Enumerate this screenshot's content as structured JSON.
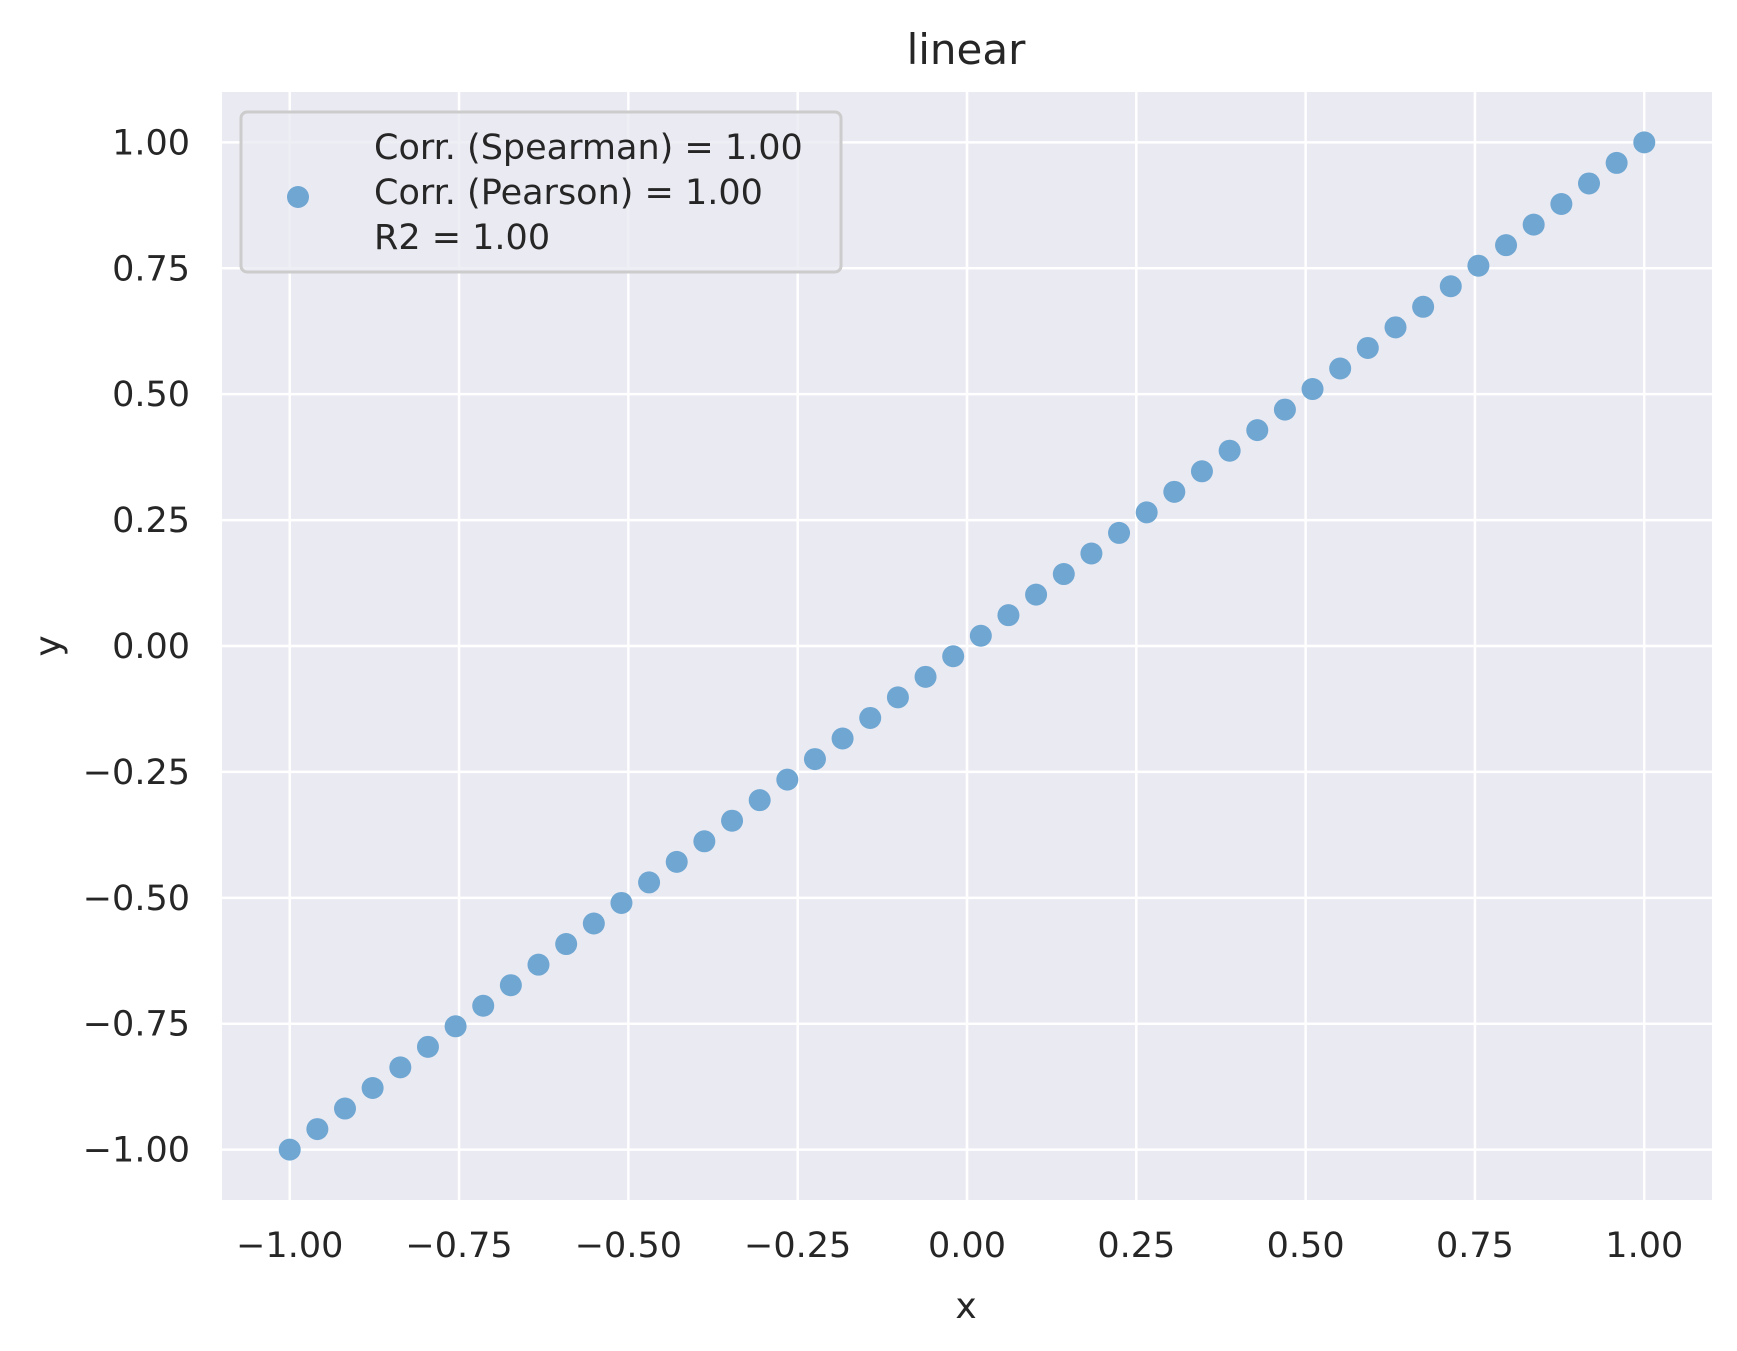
{
  "chart_data": {
    "type": "scatter",
    "title": "linear",
    "xlabel": "x",
    "ylabel": "y",
    "xlim": [
      -1.1,
      1.1
    ],
    "ylim": [
      -1.1,
      1.1
    ],
    "xticks": [
      -1.0,
      -0.75,
      -0.5,
      -0.25,
      0.0,
      0.25,
      0.5,
      0.75,
      1.0
    ],
    "xtick_labels": [
      "−1.00",
      "−0.75",
      "−0.50",
      "−0.25",
      "0.00",
      "0.25",
      "0.50",
      "0.75",
      "1.00"
    ],
    "yticks": [
      -1.0,
      -0.75,
      -0.5,
      -0.25,
      0.0,
      0.25,
      0.5,
      0.75,
      1.0
    ],
    "ytick_labels": [
      "−1.00",
      "−0.75",
      "−0.50",
      "−0.25",
      "0.00",
      "0.25",
      "0.50",
      "0.75",
      "1.00"
    ],
    "grid": true,
    "legend_position": "top-left",
    "legend": {
      "lines": [
        "Corr. (Spearman) = 1.00",
        "Corr. (Pearson) = 1.00",
        "R2 = 1.00"
      ]
    },
    "colors": {
      "background": "#eaeaf2",
      "grid": "#ffffff",
      "marker": "#6fa6d2",
      "text": "#262626"
    },
    "series": [
      {
        "x": [
          -1.0,
          -0.9592,
          -0.9184,
          -0.8776,
          -0.8367,
          -0.7959,
          -0.7551,
          -0.7143,
          -0.6735,
          -0.6327,
          -0.5918,
          -0.551,
          -0.5102,
          -0.4694,
          -0.4286,
          -0.3878,
          -0.3469,
          -0.3061,
          -0.2653,
          -0.2245,
          -0.1837,
          -0.1429,
          -0.102,
          -0.0612,
          -0.0204,
          0.0204,
          0.0612,
          0.102,
          0.1429,
          0.1837,
          0.2245,
          0.2653,
          0.3061,
          0.3469,
          0.3878,
          0.4286,
          0.4694,
          0.5102,
          0.551,
          0.5918,
          0.6327,
          0.6735,
          0.7143,
          0.7551,
          0.7959,
          0.8367,
          0.8776,
          0.9184,
          0.9592,
          1.0
        ],
        "y": [
          -1.0,
          -0.9592,
          -0.9184,
          -0.8776,
          -0.8367,
          -0.7959,
          -0.7551,
          -0.7143,
          -0.6735,
          -0.6327,
          -0.5918,
          -0.551,
          -0.5102,
          -0.4694,
          -0.4286,
          -0.3878,
          -0.3469,
          -0.3061,
          -0.2653,
          -0.2245,
          -0.1837,
          -0.1429,
          -0.102,
          -0.0612,
          -0.0204,
          0.0204,
          0.0612,
          0.102,
          0.1429,
          0.1837,
          0.2245,
          0.2653,
          0.3061,
          0.3469,
          0.3878,
          0.4286,
          0.4694,
          0.5102,
          0.551,
          0.5918,
          0.6327,
          0.6735,
          0.7143,
          0.7551,
          0.7959,
          0.8367,
          0.8776,
          0.9184,
          0.9592,
          1.0
        ]
      }
    ]
  }
}
